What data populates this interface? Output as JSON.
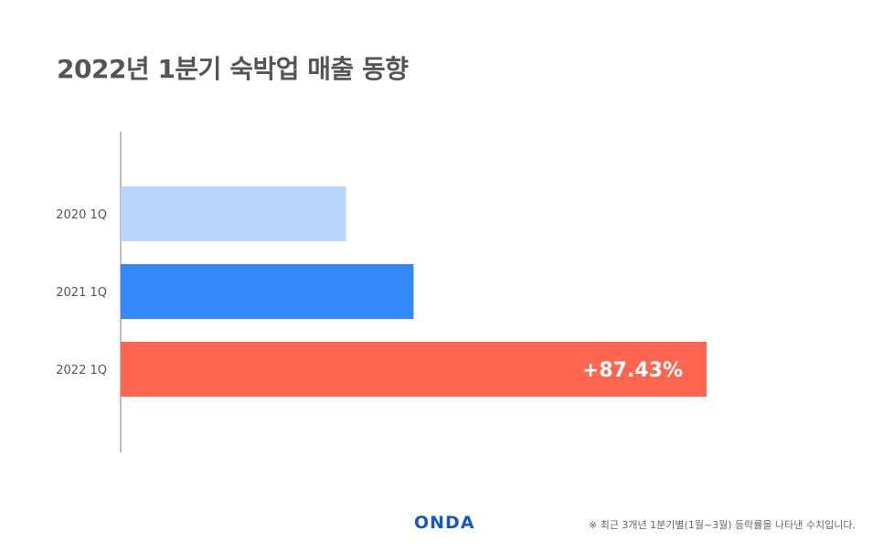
{
  "title": "2022년 1분기 숙박업 매출 동향",
  "logo_text": "ONDA",
  "footnote": "※ 최근 3개년 1분기별(1월~3월) 등락률을 나타낸 수치입니다.",
  "colors": {
    "bar_2020": "#b8d3fc",
    "bar_2021": "#3588fb",
    "bar_2022": "#ff654f",
    "title": "#555555",
    "logo": "#1a56c4"
  },
  "chart_data": {
    "type": "bar",
    "orientation": "horizontal",
    "title": "2022년 1분기 숙박업 매출 동향",
    "categories": [
      "2020 1Q",
      "2021 1Q",
      "2022 1Q"
    ],
    "values": [
      100,
      130,
      260
    ],
    "value_note": "relative magnitudes estimated from bar lengths; no value axis shown",
    "data_labels": [
      "",
      "",
      "+87.43%"
    ],
    "xlabel": "",
    "ylabel": "",
    "xlim": [
      0,
      260
    ],
    "grid": false,
    "legend": "none"
  }
}
